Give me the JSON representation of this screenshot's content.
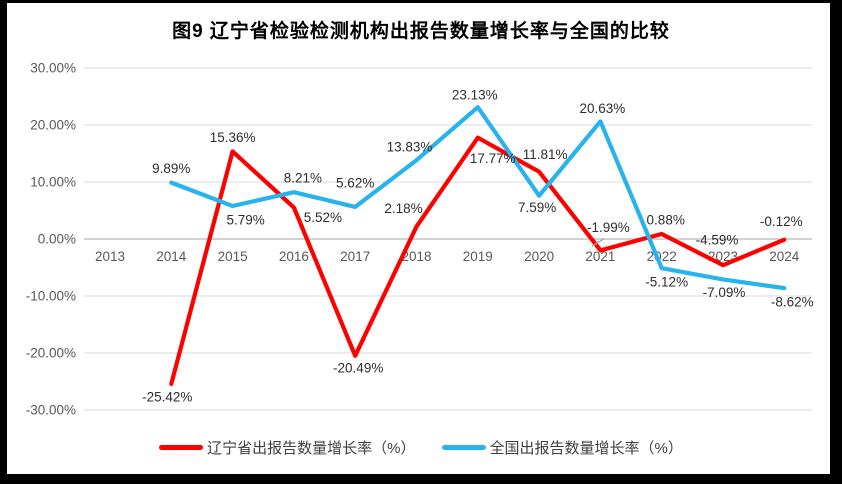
{
  "title": "图9  辽宁省检验检测机构出报告数量增长率与全国的比较",
  "colors": {
    "liaoning": "#FF0000",
    "national": "#29B3EC",
    "grid": "#DBDBDB",
    "axis_line": "#C3C3C3",
    "tick_text": "#595959",
    "label_text": "#2E2E2E",
    "leader": "#A6A6A6"
  },
  "chart_data": {
    "type": "line",
    "title": "图9  辽宁省检验检测机构出报告数量增长率与全国的比较",
    "categories": [
      "2013",
      "2014",
      "2015",
      "2016",
      "2017",
      "2018",
      "2019",
      "2020",
      "2021",
      "2022",
      "2023",
      "2024"
    ],
    "series": [
      {
        "name": "辽宁省出报告数量增长率（%）",
        "color_key": "liaoning",
        "values": [
          null,
          -25.42,
          15.36,
          5.52,
          -20.49,
          2.18,
          17.77,
          11.81,
          -1.99,
          0.88,
          -4.59,
          -0.12
        ],
        "data_labels": [
          null,
          "-25.42%",
          "15.36%",
          "5.52%",
          "-20.49%",
          "2.18%",
          "17.77%",
          "11.81%",
          "-1.99%",
          "0.88%",
          "-4.59%",
          "-0.12%"
        ],
        "label_offsets": [
          null,
          [
            -4,
            13
          ],
          [
            0,
            -14
          ],
          [
            29,
            10
          ],
          [
            3,
            12
          ],
          [
            -13,
            -18
          ],
          [
            15,
            21
          ],
          [
            6,
            -17
          ],
          [
            8,
            -23
          ],
          [
            4,
            -14
          ],
          [
            -6,
            -25
          ],
          [
            -3,
            -18
          ]
        ],
        "leader_index": 8
      },
      {
        "name": "全国出报告数量增长率（%）",
        "color_key": "national",
        "values": [
          null,
          9.89,
          5.79,
          8.21,
          5.62,
          13.83,
          23.13,
          7.59,
          20.63,
          -5.12,
          -7.09,
          -8.62
        ],
        "data_labels": [
          null,
          "9.89%",
          "5.79%",
          "8.21%",
          "5.62%",
          "13.83%",
          "23.13%",
          "7.59%",
          "20.63%",
          "-5.12%",
          "-7.09%",
          "-8.62%"
        ],
        "label_offsets": [
          null,
          [
            0,
            -14
          ],
          [
            13,
            14
          ],
          [
            9,
            -14
          ],
          [
            0,
            -24
          ],
          [
            -7,
            -13
          ],
          [
            -3,
            -12
          ],
          [
            -2,
            12
          ],
          [
            2,
            -13
          ],
          [
            5,
            14
          ],
          [
            1,
            13
          ],
          [
            8,
            14
          ]
        ],
        "leader_index": null
      }
    ],
    "ylim": [
      -30,
      30
    ],
    "ytick_step": 10,
    "ytick_labels": [
      "30.00%",
      "20.00%",
      "10.00%",
      "0.00%",
      "-10.00%",
      "-20.00%",
      "-30.00%"
    ],
    "xlabel": "",
    "ylabel": "",
    "grid": true,
    "legend_position": "bottom"
  }
}
